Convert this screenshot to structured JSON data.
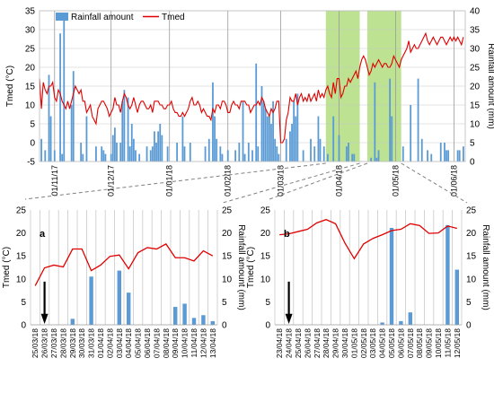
{
  "chart_data": [
    {
      "panel": "main",
      "type": "bar+line",
      "legend": [
        {
          "label": "Rainfall amount",
          "kind": "bar",
          "color": "#5b9bd5"
        },
        {
          "label": "Tmed",
          "kind": "line",
          "color": "#e00000"
        }
      ],
      "legend_position": "top-left",
      "ylabel_left": "Tmed (°C)",
      "ylabel_right": "Rainfall amount (mm)",
      "ylim_left": [
        -5,
        35
      ],
      "ylim_right": [
        0,
        40
      ],
      "yticks_left": [
        "-5",
        "0",
        "5",
        "10",
        "15",
        "20",
        "25",
        "30",
        "35"
      ],
      "yticks_right": [
        "0",
        "5",
        "10",
        "15",
        "20",
        "25",
        "30",
        "35",
        "40"
      ],
      "x_start": "2017-10-24",
      "xlim_days": [
        0,
        226
      ],
      "x_ticks": [
        {
          "label": "01/11/17",
          "day": 8
        },
        {
          "label": "01/12/17",
          "day": 38
        },
        {
          "label": "01/01/18",
          "day": 69
        },
        {
          "label": "01/02/18",
          "day": 100
        },
        {
          "label": "01/03/18",
          "day": 128
        },
        {
          "label": "01/04/18",
          "day": 159
        },
        {
          "label": "01/05/18",
          "day": 189
        },
        {
          "label": "01/06/18",
          "day": 220
        }
      ],
      "highlight_ranges_days": [
        [
          152,
          170
        ],
        [
          174,
          192
        ]
      ],
      "tmed": [
        17,
        9,
        16,
        14,
        13,
        15,
        15,
        16,
        12,
        11,
        14,
        13,
        11,
        10,
        9,
        11,
        9,
        11,
        13,
        15,
        14,
        13,
        14,
        11,
        11,
        8,
        9,
        10,
        7,
        6,
        5,
        9,
        10,
        11,
        11,
        10,
        9,
        7,
        8,
        9,
        12,
        10,
        10,
        8,
        11,
        13,
        12,
        10,
        9,
        10,
        12,
        10,
        8,
        10,
        11,
        11,
        10,
        9,
        9,
        10,
        8,
        11,
        11,
        11,
        10,
        10,
        9,
        9,
        10,
        10,
        11,
        9,
        8,
        8,
        7,
        7,
        8,
        7,
        8,
        9,
        11,
        12,
        10,
        10,
        11,
        10,
        8,
        9,
        8,
        7,
        7,
        6,
        9,
        8,
        10,
        10,
        9,
        11,
        11,
        10,
        8,
        8,
        10,
        11,
        10,
        10,
        9,
        11,
        11,
        11,
        10,
        10,
        8,
        9,
        10,
        10,
        11,
        10,
        12,
        11,
        9,
        8,
        7,
        9,
        8,
        9,
        11,
        11,
        0,
        0,
        1,
        6,
        8,
        12,
        11,
        11,
        13,
        10,
        12,
        13,
        11,
        12,
        11,
        13,
        11,
        12,
        13,
        11,
        14,
        12,
        13,
        12,
        14,
        15,
        13,
        12,
        16,
        13,
        17,
        17,
        12,
        13,
        15,
        15,
        17,
        16,
        17,
        18,
        19,
        17,
        20,
        22,
        23,
        22,
        20,
        18,
        19,
        21,
        20,
        21,
        22,
        21,
        20,
        21,
        21,
        20,
        20,
        21,
        23,
        22,
        21,
        20,
        22,
        23,
        24,
        25,
        27,
        24,
        25,
        26,
        25,
        25,
        26,
        27,
        28,
        29,
        27,
        26,
        27,
        28,
        27,
        26,
        27,
        28,
        28,
        27,
        26,
        27,
        28,
        27,
        28,
        27,
        28,
        27,
        26,
        28
      ],
      "rain_bars": [
        {
          "day": 1,
          "mm": 6
        },
        {
          "day": 3,
          "mm": 3
        },
        {
          "day": 5,
          "mm": 23
        },
        {
          "day": 6,
          "mm": 12
        },
        {
          "day": 8,
          "mm": 3
        },
        {
          "day": 11,
          "mm": 34
        },
        {
          "day": 12,
          "mm": 2
        },
        {
          "day": 13,
          "mm": 38
        },
        {
          "day": 17,
          "mm": 15
        },
        {
          "day": 18,
          "mm": 24
        },
        {
          "day": 22,
          "mm": 5
        },
        {
          "day": 23,
          "mm": 2
        },
        {
          "day": 25,
          "mm": 12
        },
        {
          "day": 30,
          "mm": 4
        },
        {
          "day": 33,
          "mm": 4
        },
        {
          "day": 34,
          "mm": 3
        },
        {
          "day": 35,
          "mm": 2
        },
        {
          "day": 38,
          "mm": 2
        },
        {
          "day": 39,
          "mm": 7
        },
        {
          "day": 40,
          "mm": 9
        },
        {
          "day": 41,
          "mm": 5
        },
        {
          "day": 43,
          "mm": 5
        },
        {
          "day": 44,
          "mm": 16
        },
        {
          "day": 45,
          "mm": 19
        },
        {
          "day": 47,
          "mm": 17
        },
        {
          "day": 48,
          "mm": 4
        },
        {
          "day": 49,
          "mm": 10
        },
        {
          "day": 50,
          "mm": 6
        },
        {
          "day": 51,
          "mm": 3
        },
        {
          "day": 53,
          "mm": 2
        },
        {
          "day": 57,
          "mm": 4
        },
        {
          "day": 59,
          "mm": 3
        },
        {
          "day": 60,
          "mm": 4
        },
        {
          "day": 61,
          "mm": 8
        },
        {
          "day": 62,
          "mm": 5
        },
        {
          "day": 63,
          "mm": 8
        },
        {
          "day": 64,
          "mm": 10
        },
        {
          "day": 65,
          "mm": 7
        },
        {
          "day": 68,
          "mm": 4
        },
        {
          "day": 73,
          "mm": 5
        },
        {
          "day": 76,
          "mm": 12
        },
        {
          "day": 77,
          "mm": 4
        },
        {
          "day": 80,
          "mm": 5
        },
        {
          "day": 88,
          "mm": 4
        },
        {
          "day": 90,
          "mm": 6
        },
        {
          "day": 92,
          "mm": 21
        },
        {
          "day": 93,
          "mm": 12
        },
        {
          "day": 94,
          "mm": 6
        },
        {
          "day": 96,
          "mm": 4
        },
        {
          "day": 97,
          "mm": 2
        },
        {
          "day": 100,
          "mm": 3
        },
        {
          "day": 104,
          "mm": 3
        },
        {
          "day": 106,
          "mm": 5
        },
        {
          "day": 108,
          "mm": 16
        },
        {
          "day": 109,
          "mm": 2
        },
        {
          "day": 111,
          "mm": 5
        },
        {
          "day": 113,
          "mm": 3
        },
        {
          "day": 115,
          "mm": 26
        },
        {
          "day": 116,
          "mm": 4
        },
        {
          "day": 118,
          "mm": 20
        },
        {
          "day": 119,
          "mm": 16
        },
        {
          "day": 120,
          "mm": 14
        },
        {
          "day": 121,
          "mm": 12
        },
        {
          "day": 122,
          "mm": 12
        },
        {
          "day": 123,
          "mm": 10
        },
        {
          "day": 124,
          "mm": 16
        },
        {
          "day": 125,
          "mm": 6
        },
        {
          "day": 126,
          "mm": 4
        },
        {
          "day": 127,
          "mm": 2
        },
        {
          "day": 131,
          "mm": 6
        },
        {
          "day": 133,
          "mm": 8
        },
        {
          "day": 134,
          "mm": 10
        },
        {
          "day": 135,
          "mm": 16
        },
        {
          "day": 136,
          "mm": 12
        },
        {
          "day": 137,
          "mm": 18
        },
        {
          "day": 140,
          "mm": 3
        },
        {
          "day": 144,
          "mm": 6
        },
        {
          "day": 146,
          "mm": 4
        },
        {
          "day": 148,
          "mm": 12
        },
        {
          "day": 149,
          "mm": 6
        },
        {
          "day": 151,
          "mm": 4
        },
        {
          "day": 153,
          "mm": 2
        },
        {
          "day": 156,
          "mm": 12
        },
        {
          "day": 159,
          "mm": 7
        },
        {
          "day": 163,
          "mm": 4
        },
        {
          "day": 164,
          "mm": 5
        },
        {
          "day": 166,
          "mm": 2
        },
        {
          "day": 167,
          "mm": 2
        },
        {
          "day": 176,
          "mm": 1
        },
        {
          "day": 178,
          "mm": 21
        },
        {
          "day": 179,
          "mm": 1
        },
        {
          "day": 180,
          "mm": 3
        },
        {
          "day": 186,
          "mm": 22
        },
        {
          "day": 187,
          "mm": 12
        },
        {
          "day": 193,
          "mm": 4
        },
        {
          "day": 197,
          "mm": 15
        },
        {
          "day": 201,
          "mm": 22
        },
        {
          "day": 203,
          "mm": 6
        },
        {
          "day": 206,
          "mm": 3
        },
        {
          "day": 208,
          "mm": 2
        },
        {
          "day": 213,
          "mm": 5
        },
        {
          "day": 215,
          "mm": 5
        },
        {
          "day": 216,
          "mm": 3
        },
        {
          "day": 217,
          "mm": 3
        },
        {
          "day": 222,
          "mm": 3
        },
        {
          "day": 223,
          "mm": 3
        },
        {
          "day": 225,
          "mm": 4
        }
      ]
    },
    {
      "panel": "a",
      "label": "a",
      "type": "bar+line",
      "ylabel_left": "Tmed (°C)",
      "ylabel_right": "Rainfall amount (mm)",
      "ylim_left": [
        0,
        25
      ],
      "ylim_right": [
        0,
        25
      ],
      "yticks_left": [
        "0",
        "5",
        "10",
        "15",
        "20",
        "25"
      ],
      "yticks_right": [
        "0",
        "5",
        "10",
        "15",
        "20",
        "25"
      ],
      "categories": [
        "25/03/18",
        "26/03/18",
        "27/03/18",
        "28/03/18",
        "29/03/18",
        "30/03/18",
        "31/03/18",
        "01/04/18",
        "02/04/18",
        "03/04/18",
        "04/04/18",
        "05/04/18",
        "06/04/18",
        "07/04/18",
        "08/04/18",
        "09/04/18",
        "10/04/18",
        "11/04/18",
        "12/04/18",
        "13/04/18"
      ],
      "tmed": [
        8.5,
        12.4,
        13.0,
        12.6,
        16.5,
        16.5,
        11.8,
        13.0,
        14.9,
        15.2,
        12.2,
        15.7,
        16.8,
        16.5,
        17.6,
        14.6,
        14.6,
        13.9,
        16.1,
        15.0
      ],
      "rain_daily": [
        0,
        0,
        0,
        0,
        1.3,
        0,
        10.5,
        0,
        0,
        11.8,
        7.0,
        0,
        0,
        0,
        0,
        3.9,
        4.6,
        1.5,
        2.1,
        0.8
      ],
      "rain_bars": [
        {
          "category": "29/03/18",
          "mm": 1.3
        },
        {
          "category": "31/03/18",
          "mm": 10.5
        },
        {
          "category": "03/04/18",
          "mm": 11.8
        },
        {
          "category": "04/04/18",
          "mm": 7.0
        },
        {
          "category": "09/04/18",
          "mm": 3.9
        },
        {
          "category": "10/04/18",
          "mm": 4.6
        },
        {
          "category": "11/04/18",
          "mm": 1.5
        },
        {
          "category": "12/04/18",
          "mm": 2.1
        },
        {
          "category": "13/04/18",
          "mm": 0.8
        }
      ],
      "arrow_category": "26/03/18"
    },
    {
      "panel": "b",
      "label": "b",
      "type": "bar+line",
      "ylabel_left": "Tmed (°C)",
      "ylabel_right": "Rainfall amount (mm)",
      "ylim_left": [
        0,
        25
      ],
      "ylim_right": [
        0,
        25
      ],
      "yticks_left": [
        "0",
        "5",
        "10",
        "15",
        "20",
        "25"
      ],
      "yticks_right": [
        "0",
        "5",
        "10",
        "15",
        "20",
        "25"
      ],
      "categories": [
        "23/04/18",
        "24/04/18",
        "25/04/18",
        "26/04/18",
        "27/04/18",
        "28/04/18",
        "29/04/18",
        "30/04/18",
        "01/05/18",
        "02/05/18",
        "03/05/18",
        "04/05/18",
        "05/05/18",
        "06/05/18",
        "07/05/18",
        "08/05/18",
        "09/05/18",
        "10/05/18",
        "11/05/18",
        "12/05/18"
      ],
      "tmed": [
        19.6,
        19.8,
        20.3,
        20.8,
        22.2,
        22.9,
        22.0,
        17.8,
        14.4,
        17.6,
        18.8,
        19.6,
        20.5,
        20.8,
        22.0,
        21.6,
        19.9,
        20.0,
        21.5,
        21.0
      ],
      "rain_daily": [
        0,
        0,
        0,
        0,
        0,
        0,
        0,
        0,
        0,
        0,
        0,
        0.5,
        21.1,
        0.8,
        2.7,
        0,
        0,
        0,
        21.7,
        12.0
      ],
      "rain_bars": [
        {
          "category": "04/05/18",
          "mm": 0.5
        },
        {
          "category": "05/05/18",
          "mm": 21.1
        },
        {
          "category": "06/05/18",
          "mm": 0.8
        },
        {
          "category": "07/05/18",
          "mm": 2.7
        },
        {
          "category": "11/05/18",
          "mm": 21.7
        },
        {
          "category": "12/05/18",
          "mm": 12.0
        }
      ],
      "arrow_category": "24/04/18"
    }
  ],
  "colors": {
    "tmed_line": "#e00000",
    "rain_bar": "#5b9bd5",
    "highlight": "#a6d86e",
    "grid": "#c8c8c8",
    "zoom_line": "#808080"
  }
}
